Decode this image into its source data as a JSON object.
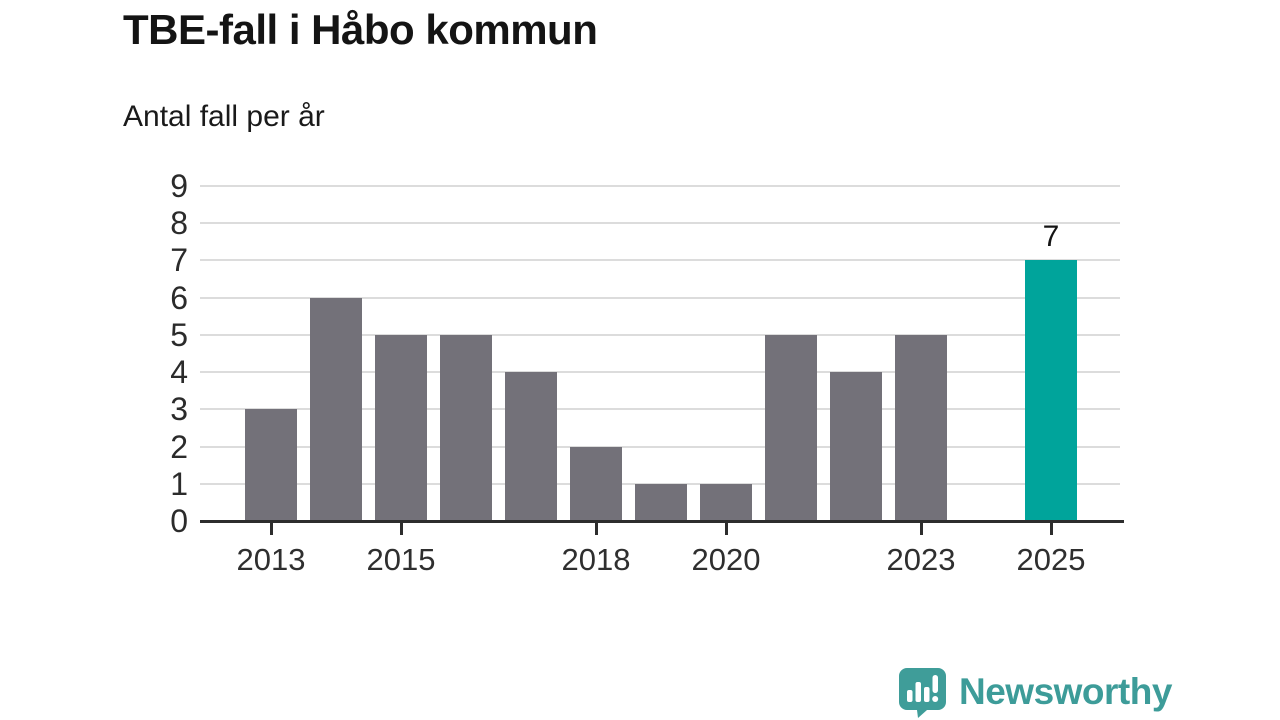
{
  "header": {
    "title": "TBE-fall i Håbo kommun",
    "subtitle": "Antal fall per år"
  },
  "chart_data": {
    "type": "bar",
    "title": "TBE-fall i Håbo kommun",
    "subtitle": "Antal fall per år",
    "categories": [
      2013,
      2014,
      2015,
      2016,
      2017,
      2018,
      2019,
      2020,
      2021,
      2022,
      2023,
      2024,
      2025
    ],
    "values": [
      3,
      6,
      5,
      5,
      4,
      2,
      1,
      1,
      5,
      4,
      5,
      0,
      7
    ],
    "highlight_category": 2025,
    "value_labels": [
      {
        "category": 2025,
        "text": "7"
      }
    ],
    "x_tick_years": [
      2013,
      2015,
      2018,
      2020,
      2023,
      2025
    ],
    "y_ticks": [
      0,
      1,
      2,
      3,
      4,
      5,
      6,
      7,
      8,
      9
    ],
    "ylim": [
      0,
      9
    ],
    "grid": true,
    "legend": "none",
    "colors": {
      "bar": "#737179",
      "highlight_bar": "#00a49b",
      "gridline": "#dcdcdc",
      "axis": "#2d2d2d",
      "tick_label": "#2f2f2f"
    }
  },
  "footer": {
    "brand": "Newsworthy",
    "brand_color": "#3d9c99",
    "logo_icon": "newsworthy-logo-icon"
  }
}
